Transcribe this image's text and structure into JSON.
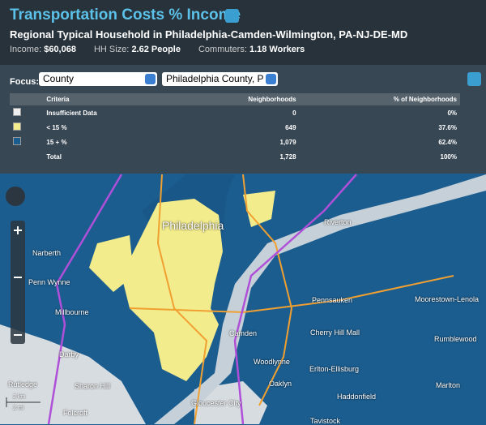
{
  "header": {
    "title": "Transportation Costs % Income",
    "subtitle": "Regional Typical Household in Philadelphia-Camden-Wilmington, PA-NJ-DE-MD",
    "stats": [
      {
        "label": "Income:",
        "value": "$60,068"
      },
      {
        "label": "HH Size:",
        "value": "2.62 People"
      },
      {
        "label": "Commuters:",
        "value": "1.18 Workers"
      }
    ]
  },
  "focus": {
    "label": "Focus:",
    "selects": [
      "County",
      "Philadelphia County, P"
    ]
  },
  "table": {
    "columns": [
      "Criteria",
      "Neighborhoods",
      "% of Neighborhoods"
    ],
    "rows": [
      [
        "Insufficient Data",
        "0",
        "0%"
      ],
      [
        "< 15 %",
        "649",
        "37.6%"
      ],
      [
        "15 + %",
        "1,079",
        "62.4%"
      ],
      [
        "Total",
        "1,728",
        "100%"
      ]
    ]
  },
  "map": {
    "labels": [
      "Philadelphia",
      "Narberth",
      "Penn Wynne",
      "Millbourne",
      "Darby",
      "Rutledge",
      "Sharon Hill",
      "Folcroft",
      "Riverton",
      "Pennsauken",
      "Moorestown-Lenola",
      "Cherry Hill Mall",
      "Camden",
      "Woodlynne",
      "Oaklyn",
      "Erlton-Ellisburg",
      "Rumblewood",
      "Haddonfield",
      "Marlton",
      "Gloucester City",
      "Tavistock"
    ],
    "scale": [
      "2 km",
      "2 mi"
    ]
  }
}
